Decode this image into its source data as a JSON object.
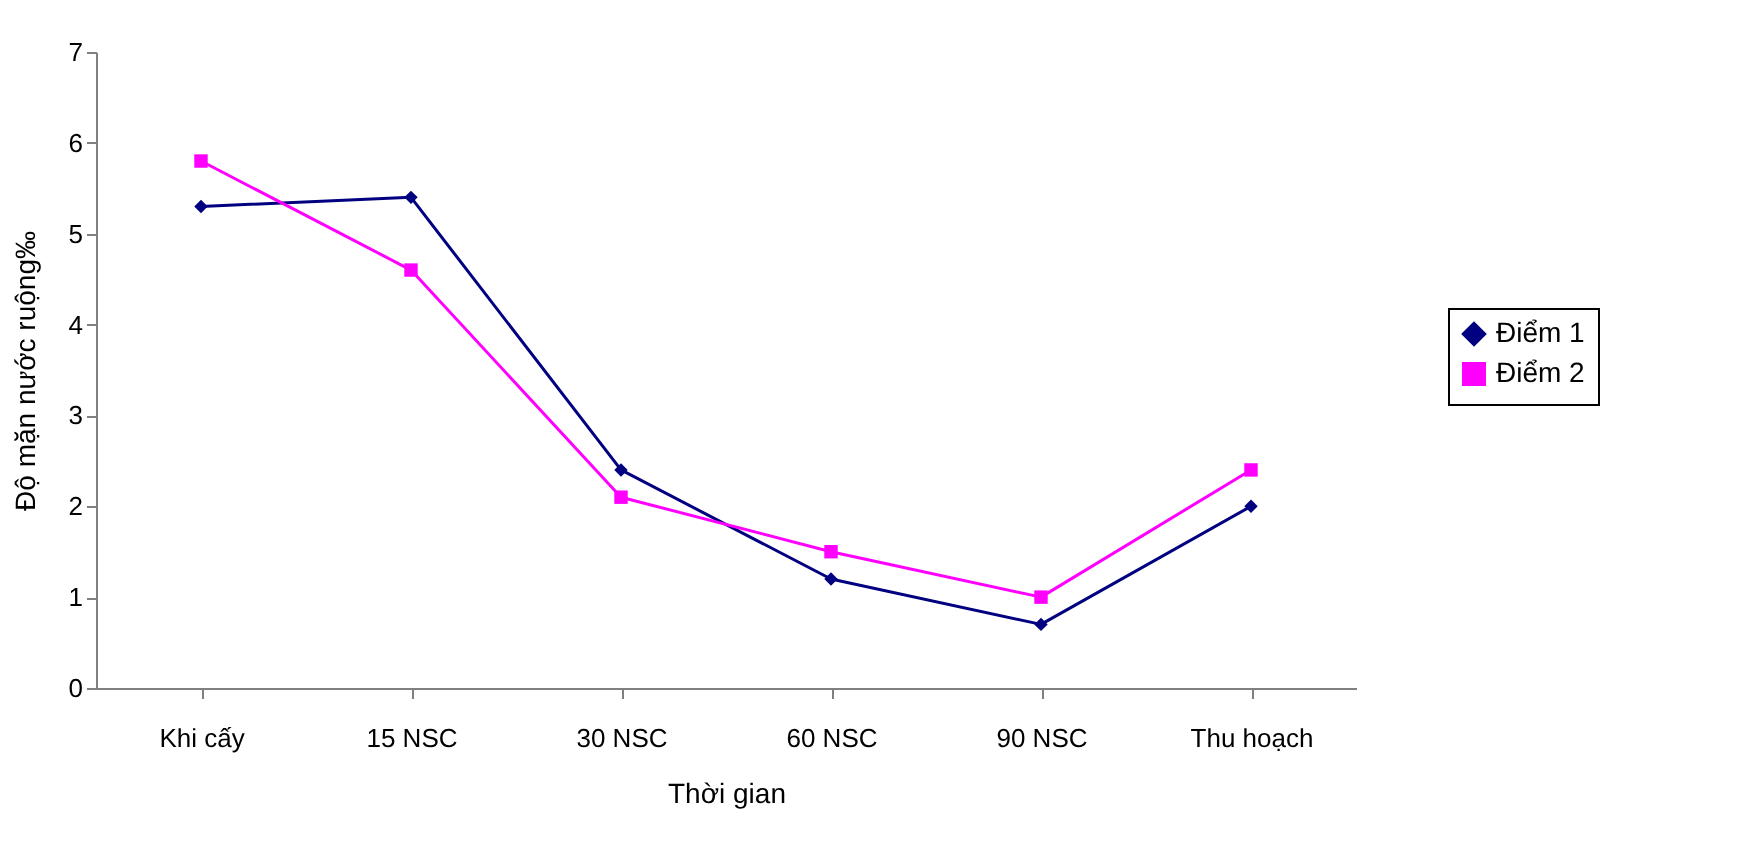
{
  "chart_data": {
    "type": "line",
    "xlabel": "Thời gian",
    "ylabel": "Độ mặn nước ruộng‰",
    "categories": [
      "Khi cấy",
      "15 NSC",
      "30 NSC",
      "60 NSC",
      "90 NSC",
      "Thu hoạch"
    ],
    "series": [
      {
        "name": "Điểm 1",
        "color": "#000080",
        "marker": "diamond",
        "values": [
          5.3,
          5.4,
          2.4,
          1.2,
          0.7,
          2.0
        ]
      },
      {
        "name": "Điểm 2",
        "color": "#ff00ff",
        "marker": "square",
        "values": [
          5.8,
          4.6,
          2.1,
          1.5,
          1.0,
          2.4
        ]
      }
    ],
    "ylim": [
      0,
      7
    ],
    "yticks": [
      0,
      1,
      2,
      3,
      4,
      5,
      6,
      7
    ],
    "grid": false,
    "legend": "right",
    "line_style": "solid"
  }
}
